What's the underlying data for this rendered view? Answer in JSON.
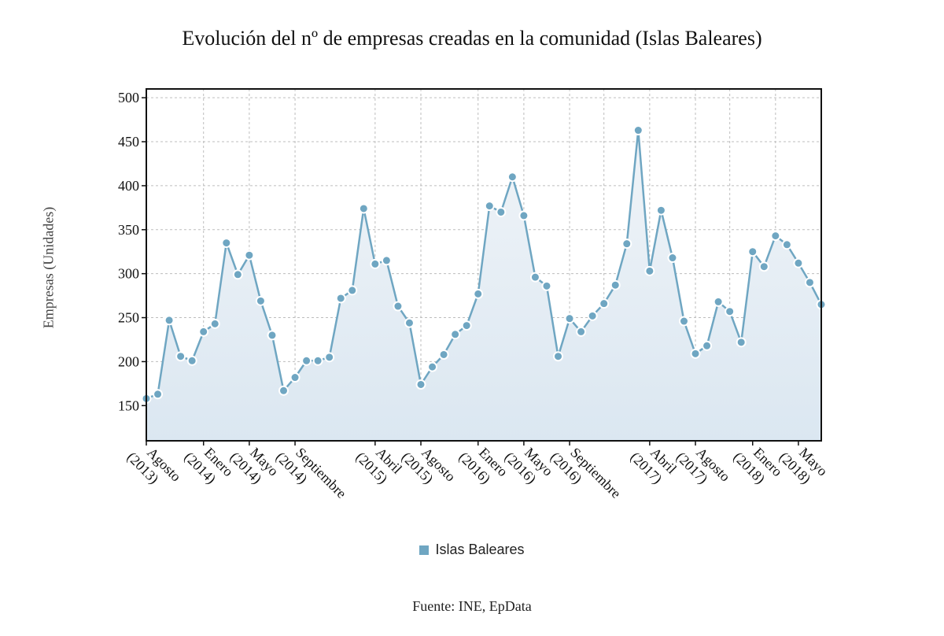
{
  "chart_data": {
    "type": "line",
    "title": "Evolución del nº de empresas creadas en la comunidad (Islas Baleares)",
    "ylabel": "Empresas (Unidades)",
    "xlabel": "",
    "ylim": [
      110,
      510
    ],
    "yticks": [
      150,
      200,
      250,
      300,
      350,
      400,
      450,
      500
    ],
    "grid": true,
    "legend_position": "bottom",
    "source": "Fuente: INE, EpData",
    "colors": {
      "line": "#6fa6c2",
      "marker": "#6fa6c2",
      "area_top": "#f0f4f8",
      "area_bottom": "#dbe7f1"
    },
    "x_tick_labels": [
      {
        "index": 0,
        "line1": "Agosto",
        "line2": "(2013)"
      },
      {
        "index": 5,
        "line1": "Enero",
        "line2": "(2014)"
      },
      {
        "index": 9,
        "line1": "Mayo",
        "line2": "(2014)"
      },
      {
        "index": 13,
        "line1": "Septiembre",
        "line2": "(2014)"
      },
      {
        "index": 20,
        "line1": "Abril",
        "line2": "(2015)"
      },
      {
        "index": 24,
        "line1": "Agosto",
        "line2": "(2015)"
      },
      {
        "index": 29,
        "line1": "Enero",
        "line2": "(2016)"
      },
      {
        "index": 33,
        "line1": "Mayo",
        "line2": "(2016)"
      },
      {
        "index": 37,
        "line1": "Septiembre",
        "line2": "(2016)"
      },
      {
        "index": 44,
        "line1": "Abril",
        "line2": "(2017)"
      },
      {
        "index": 48,
        "line1": "Agosto",
        "line2": "(2017)"
      },
      {
        "index": 53,
        "line1": "Enero",
        "line2": "(2018)"
      },
      {
        "index": 57,
        "line1": "Mayo",
        "line2": "(2018)"
      }
    ],
    "x_grid_indices": [
      0,
      5,
      9,
      13,
      20,
      24,
      29,
      33,
      37,
      40,
      44,
      48,
      51,
      55
    ],
    "series": [
      {
        "name": "Islas Baleares",
        "values": [
          158,
          163,
          247,
          206,
          201,
          234,
          243,
          335,
          299,
          321,
          269,
          230,
          167,
          182,
          201,
          201,
          205,
          272,
          281,
          374,
          311,
          315,
          263,
          244,
          174,
          194,
          208,
          231,
          241,
          277,
          377,
          370,
          410,
          366,
          296,
          286,
          206,
          249,
          234,
          252,
          266,
          287,
          334,
          463,
          303,
          372,
          318,
          246,
          209,
          218,
          268,
          257,
          222,
          325,
          308,
          343,
          333,
          312,
          290,
          265
        ]
      }
    ]
  }
}
